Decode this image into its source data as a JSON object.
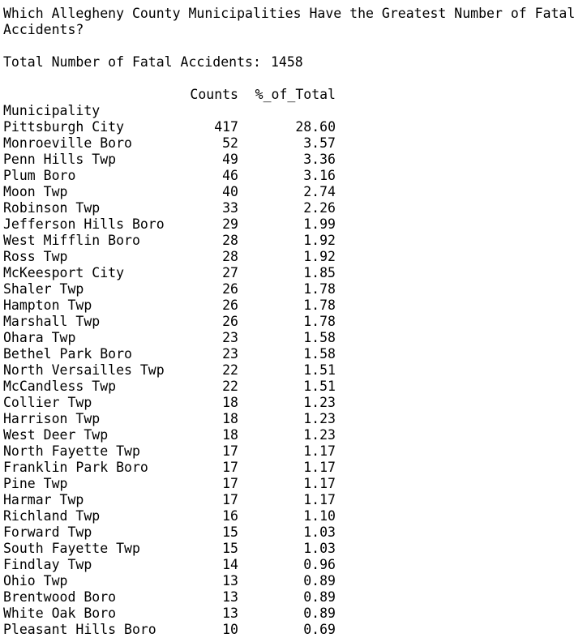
{
  "title": "Which Allegheny County Municipalities Have the Greatest Number of Fatal Accidents?",
  "total": {
    "label": "Total Number of Fatal Accidents:",
    "value": 1458
  },
  "table": {
    "columns": [
      "Counts",
      "%_of_Total"
    ],
    "index_name": "Municipality",
    "rows": [
      [
        "Pittsburgh City",
        417,
        "28.60"
      ],
      [
        "Monroeville Boro",
        52,
        "3.57"
      ],
      [
        "Penn Hills Twp",
        49,
        "3.36"
      ],
      [
        "Plum Boro",
        46,
        "3.16"
      ],
      [
        "Moon Twp",
        40,
        "2.74"
      ],
      [
        "Robinson Twp",
        33,
        "2.26"
      ],
      [
        "Jefferson Hills Boro",
        29,
        "1.99"
      ],
      [
        "West Mifflin Boro",
        28,
        "1.92"
      ],
      [
        "Ross Twp",
        28,
        "1.92"
      ],
      [
        "McKeesport City",
        27,
        "1.85"
      ],
      [
        "Shaler Twp",
        26,
        "1.78"
      ],
      [
        "Hampton Twp",
        26,
        "1.78"
      ],
      [
        "Marshall Twp",
        26,
        "1.78"
      ],
      [
        "Ohara Twp",
        23,
        "1.58"
      ],
      [
        "Bethel Park Boro",
        23,
        "1.58"
      ],
      [
        "North Versailles Twp",
        22,
        "1.51"
      ],
      [
        "McCandless Twp",
        22,
        "1.51"
      ],
      [
        "Collier Twp",
        18,
        "1.23"
      ],
      [
        "Harrison Twp",
        18,
        "1.23"
      ],
      [
        "West Deer Twp",
        18,
        "1.23"
      ],
      [
        "North Fayette Twp",
        17,
        "1.17"
      ],
      [
        "Franklin Park Boro",
        17,
        "1.17"
      ],
      [
        "Pine Twp",
        17,
        "1.17"
      ],
      [
        "Harmar Twp",
        17,
        "1.17"
      ],
      [
        "Richland Twp",
        16,
        "1.10"
      ],
      [
        "Forward Twp",
        15,
        "1.03"
      ],
      [
        "South Fayette Twp",
        15,
        "1.03"
      ],
      [
        "Findlay Twp",
        14,
        "0.96"
      ],
      [
        "Ohio Twp",
        13,
        "0.89"
      ],
      [
        "Brentwood Boro",
        13,
        "0.89"
      ],
      [
        "White Oak Boro",
        13,
        "0.89"
      ],
      [
        "Pleasant Hills Boro",
        10,
        "0.69"
      ]
    ]
  }
}
